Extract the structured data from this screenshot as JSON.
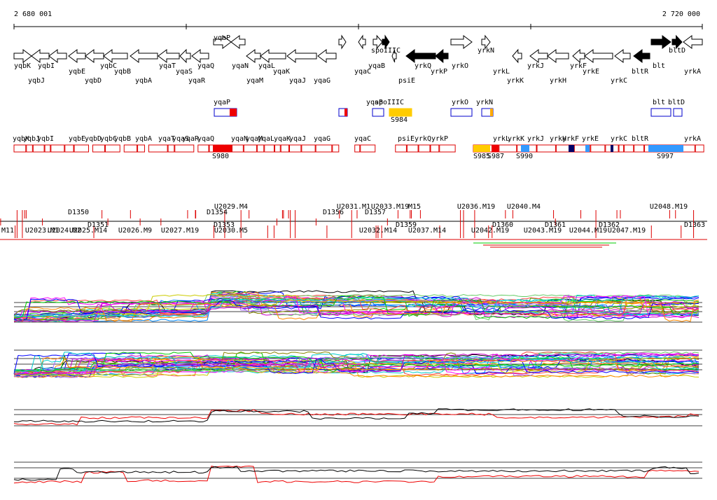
{
  "ruler": {
    "start": "2 680 001",
    "end": "2 720 000"
  },
  "genes": [
    "yqaP",
    "yqbK",
    "yqbI",
    "yqbE",
    "yqbC",
    "yqbB",
    "yqaT",
    "yqaS",
    "yqaQ",
    "yqaN",
    "yqaL",
    "yqaK",
    "spoIIIC",
    "yqaC",
    "yqaB",
    "yrkQ",
    "yrkP",
    "yrkO",
    "yrkN",
    "yrkL",
    "yrkJ",
    "yrkF",
    "yrkE",
    "bltR",
    "blt",
    "bltD",
    "yrkA",
    "yqbJ",
    "yqbD",
    "yqbA",
    "yqaR",
    "yqaM",
    "yqaJ",
    "yqaG",
    "psiE",
    "yrkK",
    "yrkH",
    "yrkC"
  ],
  "features_1": [
    "yqaP",
    "yqaB",
    "spoIIIC",
    "yrkO",
    "yrkN",
    "blt",
    "bltD",
    "S984"
  ],
  "features_2": [
    "yqbK",
    "yqbJ",
    "yqbI",
    "yqbE",
    "yqbD",
    "yqbC",
    "yqbB",
    "yqbA",
    "yqaT",
    "yqaS",
    "yqaR",
    "yqaQ",
    "yqaN",
    "yqaM",
    "yqaL",
    "yqaK",
    "yqaJ",
    "yqaG",
    "yqaC",
    "psiE",
    "yrkQ",
    "yrkP",
    "yrkL",
    "yrkK",
    "yrkJ",
    "yrkH",
    "yrkF",
    "yrkE",
    "yrkC",
    "bltR",
    "yrkA",
    "S980",
    "S985",
    "S987",
    "S990",
    "S997"
  ],
  "transcripts": [
    "D1350",
    "U2029.M4",
    "D1354",
    "U2031.M1",
    "U2033.M19",
    "M15",
    "U2036.M19",
    "U2040.M4",
    "U2048.M19",
    "D1356",
    "D1357",
    "D1351",
    "D1353",
    "D1359",
    "D1360",
    "D1361",
    "D1362",
    "D1363",
    ".M11",
    "U2023.M1",
    "U2024.M2",
    "U2025.M14",
    "U2026.M9",
    "U2027.M19",
    "U2030.M5",
    "U2032.M14",
    "U2037.M14",
    "U2042.M19",
    "U2043.M19",
    "U2044.M19",
    "U2047.M19"
  ]
}
